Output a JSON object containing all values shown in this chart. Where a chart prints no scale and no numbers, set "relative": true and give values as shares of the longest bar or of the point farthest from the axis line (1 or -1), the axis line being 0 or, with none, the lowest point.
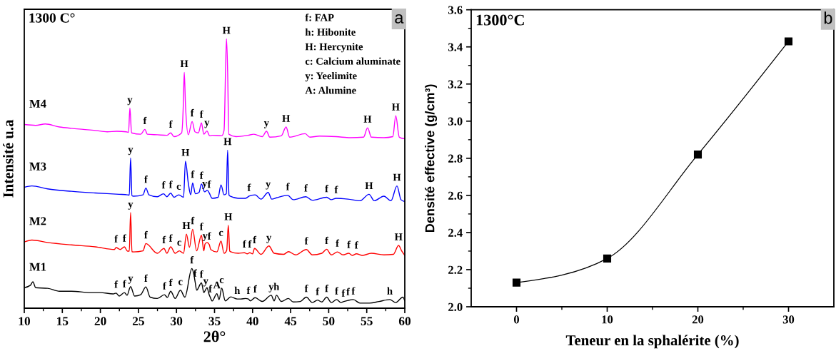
{
  "chart_data": [
    {
      "type": "line",
      "relative": true,
      "xlabel": "2θ°",
      "ylabel": "Intensité u.a",
      "xlim": [
        10,
        60
      ],
      "xticks": [
        10,
        {
          "value": 12.5,
          "label": null
        },
        15,
        {
          "value": 17.5,
          "label": null
        },
        20,
        {
          "value": 22.5,
          "label": null
        },
        25,
        {
          "value": 27.5,
          "label": null
        },
        30,
        {
          "value": 32.5,
          "label": null
        },
        35,
        {
          "value": 37.5,
          "label": null
        },
        40,
        {
          "value": 42.5,
          "label": null
        },
        45,
        {
          "value": 47.5,
          "label": null
        },
        50,
        {
          "value": 52.5,
          "label": null
        },
        55,
        {
          "value": 57.5,
          "label": null
        },
        60
      ],
      "series": [
        {
          "name": "M4",
          "color": "#ff00ff",
          "x": [
            10.0,
            11.5,
            12.76,
            14.63,
            16.2,
            17.77,
            19.33,
            20.9,
            22.15,
            23.4,
            23.7,
            23.88,
            24.1,
            25.3,
            25.85,
            26.17,
            27.48,
            28.73,
            29.24,
            29.67,
            30.68,
            30.9,
            31.02,
            31.18,
            31.55,
            32.06,
            32.43,
            32.87,
            33.28,
            33.59,
            34.0,
            34.37,
            34.69,
            35.94,
            36.25,
            36.57,
            36.72,
            36.88,
            37.82,
            39.39,
            40.17,
            41.27,
            41.83,
            42.27,
            43.77,
            44.4,
            44.87,
            46.91,
            47.53,
            48.79,
            50.98,
            52.86,
            54.58,
            55.11,
            55.61,
            57.25,
            58.43,
            58.81,
            59.28,
            60.0
          ],
          "values": [
            0.682,
            0.679,
            0.684,
            0.673,
            0.668,
            0.664,
            0.66,
            0.655,
            0.657,
            0.655,
            0.653,
            0.743,
            0.651,
            0.646,
            0.664,
            0.646,
            0.644,
            0.642,
            0.651,
            0.637,
            0.651,
            0.757,
            0.876,
            0.757,
            0.644,
            0.693,
            0.655,
            0.651,
            0.688,
            0.646,
            0.658,
            0.64,
            0.642,
            0.64,
            0.66,
            1.0,
            0.881,
            0.646,
            0.637,
            0.642,
            0.646,
            0.637,
            0.657,
            0.635,
            0.64,
            0.673,
            0.635,
            0.648,
            0.635,
            0.639,
            0.637,
            0.633,
            0.635,
            0.67,
            0.635,
            0.633,
            0.637,
            0.715,
            0.635,
            0.629
          ]
        },
        {
          "name": "M3",
          "color": "#0000ff",
          "x": [
            10.0,
            11.0,
            13.07,
            16.2,
            19.33,
            22.47,
            23.56,
            23.8,
            23.97,
            24.15,
            24.35,
            25.6,
            25.98,
            26.38,
            27.48,
            28.3,
            28.73,
            29.24,
            29.67,
            30.3,
            30.93,
            31.18,
            31.55,
            31.87,
            32.12,
            32.49,
            32.96,
            33.28,
            33.7,
            34.06,
            34.3,
            34.69,
            35.47,
            35.85,
            36.25,
            36.55,
            36.72,
            36.9,
            37.04,
            38.13,
            39.07,
            39.54,
            40.33,
            41.11,
            42.05,
            42.52,
            43.15,
            44.62,
            45.34,
            47.0,
            47.85,
            49.73,
            50.35,
            50.98,
            52.54,
            54.11,
            55.3,
            55.99,
            57.25,
            58.19,
            58.97,
            59.5,
            60.0
          ],
          "values": [
            0.449,
            0.454,
            0.443,
            0.434,
            0.428,
            0.423,
            0.421,
            0.42,
            0.558,
            0.418,
            0.416,
            0.421,
            0.446,
            0.421,
            0.414,
            0.425,
            0.414,
            0.427,
            0.412,
            0.421,
            0.412,
            0.546,
            0.465,
            0.421,
            0.465,
            0.425,
            0.43,
            0.461,
            0.432,
            0.438,
            0.428,
            0.408,
            0.412,
            0.458,
            0.421,
            0.425,
            0.587,
            0.42,
            0.416,
            0.408,
            0.408,
            0.416,
            0.421,
            0.405,
            0.43,
            0.405,
            0.41,
            0.419,
            0.403,
            0.414,
            0.401,
            0.412,
            0.403,
            0.408,
            0.405,
            0.399,
            0.423,
            0.399,
            0.416,
            0.399,
            0.454,
            0.403,
            0.396
          ]
        },
        {
          "name": "M2",
          "color": "#ff0000",
          "x": [
            10.0,
            11.0,
            13.07,
            16.2,
            19.33,
            21.84,
            22.06,
            22.62,
            23.16,
            23.56,
            23.8,
            23.97,
            24.15,
            24.35,
            25.6,
            25.98,
            27.48,
            28.36,
            28.73,
            29.24,
            29.83,
            30.37,
            30.93,
            31.3,
            31.71,
            32.12,
            32.65,
            33.28,
            33.59,
            33.75,
            34.0,
            34.31,
            34.5,
            35.31,
            35.85,
            36.25,
            36.6,
            36.81,
            37.0,
            37.19,
            38.13,
            38.92,
            39.3,
            39.63,
            40.0,
            40.26,
            41.11,
            42.14,
            42.83,
            44.09,
            44.71,
            45.65,
            47.06,
            47.85,
            49.1,
            49.73,
            50.35,
            51.14,
            51.9,
            52.64,
            53.1,
            53.64,
            54.43,
            55.61,
            57.25,
            58.5,
            59.18,
            59.6,
            60.0
          ],
          "values": [
            0.246,
            0.253,
            0.244,
            0.235,
            0.228,
            0.218,
            0.225,
            0.218,
            0.228,
            0.212,
            0.212,
            0.355,
            0.21,
            0.209,
            0.213,
            0.24,
            0.204,
            0.222,
            0.204,
            0.228,
            0.204,
            0.213,
            0.204,
            0.275,
            0.226,
            0.293,
            0.213,
            0.271,
            0.213,
            0.238,
            0.244,
            0.236,
            0.218,
            0.209,
            0.249,
            0.204,
            0.215,
            0.308,
            0.212,
            0.209,
            0.204,
            0.206,
            0.202,
            0.206,
            0.202,
            0.222,
            0.2,
            0.231,
            0.204,
            0.2,
            0.21,
            0.198,
            0.218,
            0.198,
            0.204,
            0.219,
            0.198,
            0.209,
            0.198,
            0.204,
            0.196,
            0.202,
            0.196,
            0.204,
            0.198,
            0.2,
            0.233,
            0.212,
            0.196
          ]
        },
        {
          "name": "M1",
          "color": "#000000",
          "x": [
            10.0,
            10.8,
            11.13,
            11.5,
            13.07,
            14.63,
            16.2,
            18.71,
            19.96,
            21.7,
            22.06,
            22.47,
            23.16,
            23.5,
            23.97,
            24.5,
            25.29,
            25.98,
            26.54,
            27.48,
            28.42,
            28.8,
            29.24,
            29.83,
            30.52,
            31.1,
            32.02,
            32.25,
            32.45,
            32.65,
            33.28,
            33.6,
            33.85,
            34.0,
            34.3,
            34.45,
            34.69,
            35.31,
            35.6,
            35.94,
            36.41,
            37.13,
            37.98,
            38.45,
            39.07,
            39.45,
            39.7,
            40.33,
            41.27,
            42.45,
            42.83,
            43.14,
            43.77,
            44.71,
            45.34,
            46.28,
            47.06,
            47.85,
            48.53,
            49.1,
            49.73,
            50.35,
            51.04,
            51.61,
            51.92,
            52.54,
            53.23,
            54.11,
            55.37,
            56.62,
            58.03,
            58.81,
            59.75,
            60.0
          ],
          "values": [
            0.076,
            0.085,
            0.098,
            0.076,
            0.074,
            0.063,
            0.063,
            0.058,
            0.058,
            0.053,
            0.056,
            0.045,
            0.058,
            0.048,
            0.08,
            0.045,
            0.05,
            0.079,
            0.041,
            0.036,
            0.05,
            0.04,
            0.063,
            0.036,
            0.067,
            0.041,
            0.147,
            0.13,
            0.098,
            0.067,
            0.094,
            0.058,
            0.07,
            0.076,
            0.05,
            0.04,
            0.027,
            0.054,
            0.032,
            0.074,
            0.027,
            0.042,
            0.034,
            0.034,
            0.036,
            0.034,
            0.027,
            0.039,
            0.025,
            0.048,
            0.027,
            0.048,
            0.025,
            0.036,
            0.023,
            0.025,
            0.041,
            0.021,
            0.03,
            0.023,
            0.041,
            0.021,
            0.032,
            0.021,
            0.024,
            0.029,
            0.032,
            0.019,
            0.019,
            0.025,
            0.032,
            0.021,
            0.041,
            0.027
          ]
        }
      ],
      "annotations": [
        "1300 C°",
        "a",
        "f: FAP",
        "h: Hibonite",
        "H: Hercynite",
        "c: Calcium aluminate",
        "y: Yeelimite",
        "A: Alumine",
        {
          "text": "y",
          "x": 23.88,
          "y": 0.743
        },
        {
          "text": "f",
          "x": 25.85,
          "y": 0.664
        },
        {
          "text": "f",
          "x": 29.24,
          "y": 0.651
        },
        {
          "text": "H",
          "x": 31.02,
          "y": 0.876
        },
        {
          "text": "f",
          "x": 32.06,
          "y": 0.693
        },
        {
          "text": "f",
          "x": 33.28,
          "y": 0.688
        },
        {
          "text": "y",
          "x": 34.0,
          "y": 0.658
        },
        {
          "text": "H",
          "x": 36.57,
          "y": 1.0
        },
        {
          "text": "y",
          "x": 41.83,
          "y": 0.657
        },
        {
          "text": "H",
          "x": 44.4,
          "y": 0.673
        },
        {
          "text": "H",
          "x": 55.11,
          "y": 0.67
        },
        {
          "text": "H",
          "x": 58.81,
          "y": 0.715
        },
        {
          "text": "y",
          "x": 23.97,
          "y": 0.558
        },
        {
          "text": "f",
          "x": 25.98,
          "y": 0.446
        },
        {
          "text": "f",
          "x": 28.3,
          "y": 0.425
        },
        {
          "text": "f",
          "x": 29.24,
          "y": 0.427
        },
        {
          "text": "c",
          "x": 30.3,
          "y": 0.421
        },
        {
          "text": "H",
          "x": 31.18,
          "y": 0.546
        },
        {
          "text": "f",
          "x": 32.12,
          "y": 0.465
        },
        {
          "text": "f",
          "x": 33.28,
          "y": 0.461
        },
        {
          "text": "y",
          "x": 33.7,
          "y": 0.432
        },
        {
          "text": "f",
          "x": 34.3,
          "y": 0.428
        },
        {
          "text": "H",
          "x": 36.72,
          "y": 0.587
        },
        {
          "text": "f",
          "x": 39.54,
          "y": 0.416
        },
        {
          "text": "y",
          "x": 42.05,
          "y": 0.43
        },
        {
          "text": "f",
          "x": 44.62,
          "y": 0.419
        },
        {
          "text": "f",
          "x": 47.0,
          "y": 0.414
        },
        {
          "text": "f",
          "x": 49.73,
          "y": 0.412
        },
        {
          "text": "f",
          "x": 50.98,
          "y": 0.408
        },
        {
          "text": "H",
          "x": 55.3,
          "y": 0.423
        },
        {
          "text": "H",
          "x": 58.97,
          "y": 0.454
        },
        {
          "text": "f",
          "x": 22.06,
          "y": 0.225
        },
        {
          "text": "f",
          "x": 23.16,
          "y": 0.228
        },
        {
          "text": "y",
          "x": 23.97,
          "y": 0.355
        },
        {
          "text": "f",
          "x": 25.98,
          "y": 0.24
        },
        {
          "text": "f",
          "x": 28.36,
          "y": 0.222
        },
        {
          "text": "f",
          "x": 29.24,
          "y": 0.228
        },
        {
          "text": "c",
          "x": 30.37,
          "y": 0.213
        },
        {
          "text": "H",
          "x": 31.3,
          "y": 0.275
        },
        {
          "text": "f",
          "x": 32.12,
          "y": 0.293
        },
        {
          "text": "f",
          "x": 33.28,
          "y": 0.271
        },
        {
          "text": "y",
          "x": 33.75,
          "y": 0.238
        },
        {
          "text": "f",
          "x": 34.31,
          "y": 0.236
        },
        {
          "text": "c",
          "x": 35.85,
          "y": 0.249
        },
        {
          "text": "H",
          "x": 36.81,
          "y": 0.308
        },
        {
          "text": "f",
          "x": 38.92,
          "y": 0.206
        },
        {
          "text": "f",
          "x": 39.63,
          "y": 0.206
        },
        {
          "text": "f",
          "x": 40.26,
          "y": 0.222
        },
        {
          "text": "y",
          "x": 42.14,
          "y": 0.231
        },
        {
          "text": "f",
          "x": 47.06,
          "y": 0.218
        },
        {
          "text": "f",
          "x": 49.73,
          "y": 0.219
        },
        {
          "text": "f",
          "x": 51.14,
          "y": 0.209
        },
        {
          "text": "f",
          "x": 52.64,
          "y": 0.204
        },
        {
          "text": "f",
          "x": 53.64,
          "y": 0.202
        },
        {
          "text": "H",
          "x": 59.18,
          "y": 0.233
        },
        {
          "text": "f",
          "x": 22.06,
          "y": 0.056
        },
        {
          "text": "f",
          "x": 23.16,
          "y": 0.058
        },
        {
          "text": "y",
          "x": 23.97,
          "y": 0.08
        },
        {
          "text": "f",
          "x": 25.98,
          "y": 0.079
        },
        {
          "text": "f",
          "x": 28.42,
          "y": 0.05
        },
        {
          "text": "f",
          "x": 29.24,
          "y": 0.063
        },
        {
          "text": "c",
          "x": 30.52,
          "y": 0.067
        },
        {
          "text": "f",
          "x": 32.02,
          "y": 0.147
        },
        {
          "text": "f",
          "x": 32.45,
          "y": 0.098
        },
        {
          "text": "f",
          "x": 33.28,
          "y": 0.094
        },
        {
          "text": "y",
          "x": 33.85,
          "y": 0.07
        },
        {
          "text": "f",
          "x": 34.45,
          "y": 0.04
        },
        {
          "text": "A",
          "x": 35.31,
          "y": 0.054
        },
        {
          "text": "c",
          "x": 35.94,
          "y": 0.074
        },
        {
          "text": "h",
          "x": 37.98,
          "y": 0.034
        },
        {
          "text": "f",
          "x": 39.45,
          "y": 0.034
        },
        {
          "text": "f",
          "x": 40.33,
          "y": 0.039
        },
        {
          "text": "y",
          "x": 42.45,
          "y": 0.048
        },
        {
          "text": "h",
          "x": 43.14,
          "y": 0.048
        },
        {
          "text": "f",
          "x": 47.06,
          "y": 0.041
        },
        {
          "text": "f",
          "x": 48.53,
          "y": 0.03
        },
        {
          "text": "f",
          "x": 49.73,
          "y": 0.041
        },
        {
          "text": "f",
          "x": 51.04,
          "y": 0.032
        },
        {
          "text": "f",
          "x": 51.92,
          "y": 0.024
        },
        {
          "text": "f",
          "x": 52.54,
          "y": 0.029
        },
        {
          "text": "f",
          "x": 53.23,
          "y": 0.032
        },
        {
          "text": "h",
          "x": 58.03,
          "y": 0.032
        }
      ]
    },
    {
      "type": "line",
      "xlabel": "Teneur en la sphalérite (%)",
      "ylabel": "Densité effective (g/cm³)",
      "x": [
        0,
        10,
        20,
        30
      ],
      "series": [
        {
          "color": "#000000",
          "values": [
            2.13,
            2.26,
            2.82,
            3.43
          ]
        }
      ],
      "marker": "square",
      "line_style": "solid",
      "xlim": [
        -5,
        35
      ],
      "xticks": [
        0,
        {
          "value": 5,
          "label": null
        },
        10,
        {
          "value": 15,
          "label": null
        },
        20,
        {
          "value": 25,
          "label": null
        },
        30
      ],
      "ylim": [
        2.0,
        3.6
      ],
      "yticks": [
        {
          "value": 2.0,
          "label": "2.0"
        },
        {
          "value": 2.1,
          "label": null
        },
        {
          "value": 2.2,
          "label": "2.2"
        },
        {
          "value": 2.3,
          "label": null
        },
        {
          "value": 2.4,
          "label": "2.4"
        },
        {
          "value": 2.5,
          "label": null
        },
        {
          "value": 2.6,
          "label": "2.6"
        },
        {
          "value": 2.7,
          "label": null
        },
        {
          "value": 2.8,
          "label": "2.8"
        },
        {
          "value": 2.9,
          "label": null
        },
        {
          "value": 3.0,
          "label": "3.0"
        },
        {
          "value": 3.1,
          "label": null
        },
        {
          "value": 3.2,
          "label": "3.2"
        },
        {
          "value": 3.3,
          "label": null
        },
        {
          "value": 3.4,
          "label": "3.4"
        },
        {
          "value": 3.5,
          "label": null
        },
        {
          "value": 3.6,
          "label": "3.6"
        }
      ],
      "annotations": [
        "1300°C",
        "b"
      ]
    }
  ]
}
